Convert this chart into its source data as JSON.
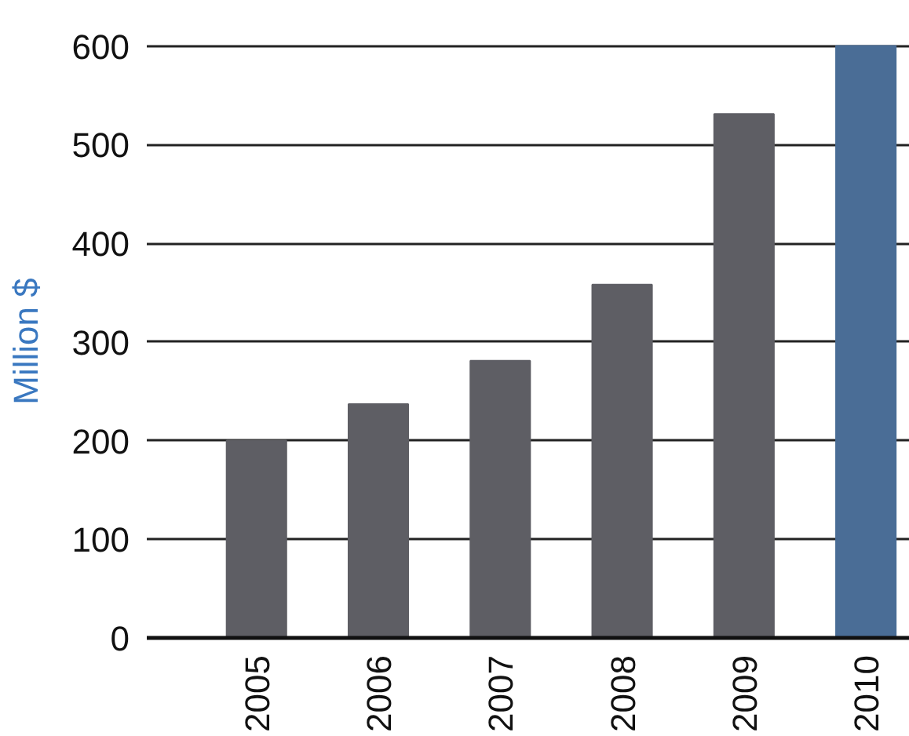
{
  "chart_data": {
    "type": "bar",
    "ylabel": "Million $",
    "categories": [
      "2005",
      "2006",
      "2007",
      "2008",
      "2009",
      "2010"
    ],
    "values": [
      200,
      237,
      281,
      358,
      531,
      600
    ],
    "colors": [
      "#5e5e64",
      "#5e5e64",
      "#5e5e64",
      "#5e5e64",
      "#5e5e64",
      "#4a6d96"
    ],
    "ylim": [
      0,
      600
    ],
    "yticks": [
      0,
      100,
      200,
      300,
      400,
      500,
      600
    ],
    "grid": "y"
  }
}
